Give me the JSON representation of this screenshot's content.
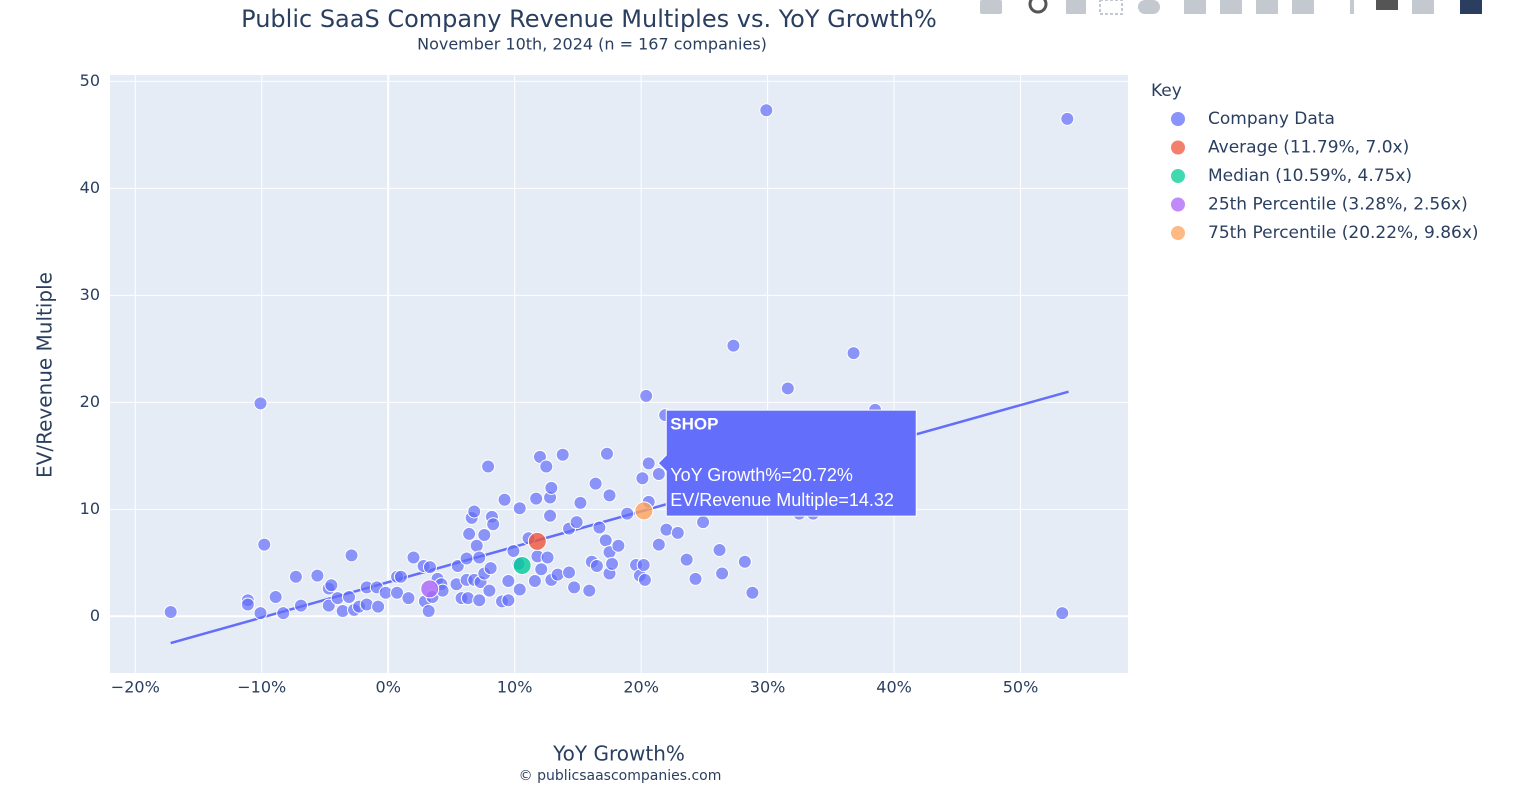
{
  "chart_data": {
    "type": "scatter",
    "title": "Public SaaS Company Revenue Multiples vs. YoY Growth%",
    "subtitle": "November 10th, 2024 (n = 167 companies)",
    "xlabel": "YoY Growth%",
    "ylabel": "EV/Revenue Multiple",
    "source": "© publicsaascompanies.com",
    "legend_title": "Key",
    "legend_position": "right",
    "grid": true,
    "xlim": [
      -22,
      58.5
    ],
    "ylim": [
      -5.3,
      50.6
    ],
    "xticks": [
      {
        "value": -20,
        "label": "−20%"
      },
      {
        "value": -10,
        "label": "−10%"
      },
      {
        "value": 0,
        "label": "0%"
      },
      {
        "value": 10,
        "label": "10%"
      },
      {
        "value": 20,
        "label": "20%"
      },
      {
        "value": 30,
        "label": "30%"
      },
      {
        "value": 40,
        "label": "40%"
      },
      {
        "value": 50,
        "label": "50%"
      }
    ],
    "yticks": [
      0,
      10,
      20,
      30,
      40,
      50
    ],
    "trendline": {
      "color": "#636efa",
      "x": [
        -17.2,
        53.8
      ],
      "values": [
        -2.5,
        21.0
      ]
    },
    "series": [
      {
        "name": "Company Data",
        "color": "#636efa",
        "x": [
          -17.2,
          -11.1,
          -11.1,
          -10.1,
          -10.1,
          -9.8,
          -8.9,
          -8.3,
          -7.3,
          -6.9,
          -5.6,
          -4.7,
          -4.5,
          -4.7,
          -4.0,
          -3.6,
          -3.1,
          -2.9,
          -2.7,
          -2.3,
          -1.7,
          -1.7,
          -0.9,
          -0.8,
          -0.2,
          0.7,
          0.7,
          1.0,
          1.6,
          2.0,
          2.8,
          2.9,
          3.2,
          3.3,
          3.5,
          3.9,
          4.2,
          4.3,
          5.4,
          5.5,
          5.8,
          6.2,
          6.2,
          6.3,
          6.4,
          6.6,
          6.8,
          6.8,
          7.0,
          7.2,
          7.2,
          7.3,
          7.6,
          7.6,
          7.9,
          8.0,
          8.1,
          8.2,
          8.3,
          9.0,
          9.2,
          9.5,
          9.5,
          9.9,
          10.3,
          10.4,
          10.4,
          11.1,
          11.6,
          11.7,
          11.8,
          12.0,
          12.1,
          12.5,
          12.6,
          12.8,
          12.8,
          12.9,
          12.9,
          13.4,
          13.8,
          14.3,
          14.3,
          14.7,
          14.9,
          15.2,
          15.9,
          16.1,
          16.4,
          16.5,
          16.7,
          17.2,
          17.3,
          17.5,
          17.5,
          17.5,
          17.7,
          18.2,
          18.9,
          19.6,
          19.9,
          20.1,
          20.2,
          20.3,
          20.4,
          20.6,
          20.6,
          21.4,
          21.4,
          21.9,
          22.0,
          22.9,
          23.6,
          24.3,
          24.9,
          26.2,
          26.4,
          27.3,
          28.2,
          28.8,
          29.9,
          31.6,
          32.5,
          33.6,
          36.8,
          38.5,
          53.3,
          53.7
        ],
        "values": [
          0.4,
          1.5,
          1.1,
          19.9,
          0.3,
          6.7,
          1.8,
          0.3,
          3.7,
          1.0,
          3.8,
          2.6,
          2.9,
          1.0,
          1.7,
          0.5,
          1.8,
          5.7,
          0.6,
          0.9,
          1.1,
          2.7,
          2.7,
          0.9,
          2.2,
          3.7,
          2.2,
          3.7,
          1.7,
          5.5,
          4.7,
          1.4,
          0.5,
          4.6,
          1.8,
          3.5,
          3.0,
          2.4,
          3.0,
          4.7,
          1.7,
          5.4,
          3.4,
          1.7,
          7.7,
          9.2,
          9.8,
          3.4,
          6.6,
          5.5,
          1.5,
          3.2,
          7.6,
          4.0,
          14.0,
          2.4,
          4.5,
          9.3,
          8.6,
          1.4,
          10.9,
          1.5,
          3.3,
          6.1,
          4.9,
          10.1,
          2.5,
          7.3,
          3.3,
          11.0,
          5.6,
          14.9,
          4.4,
          14.0,
          5.5,
          11.1,
          9.4,
          12.0,
          3.4,
          3.9,
          15.1,
          8.2,
          4.1,
          2.7,
          8.8,
          10.6,
          2.4,
          5.1,
          12.4,
          4.7,
          8.3,
          7.1,
          15.2,
          11.3,
          6.0,
          4.0,
          4.9,
          6.6,
          9.6,
          4.8,
          3.8,
          12.9,
          4.8,
          3.4,
          20.6,
          14.3,
          10.7,
          13.3,
          6.7,
          18.8,
          8.1,
          7.8,
          5.3,
          3.5,
          8.8,
          6.2,
          4.0,
          25.3,
          5.1,
          2.2,
          47.3,
          21.3,
          9.6,
          9.6,
          24.6,
          19.3,
          0.3,
          46.5
        ]
      },
      {
        "name": "Average (11.79%, 7.0x)",
        "color": "#ef553b",
        "x": [
          11.79
        ],
        "values": [
          7.0
        ]
      },
      {
        "name": "Median (10.59%, 4.75x)",
        "color": "#00cc96",
        "x": [
          10.59
        ],
        "values": [
          4.75
        ]
      },
      {
        "name": "25th Percentile (3.28%, 2.56x)",
        "color": "#ab63fa",
        "x": [
          3.28
        ],
        "values": [
          2.56
        ]
      },
      {
        "name": "75th Percentile (20.22%, 9.86x)",
        "color": "#ffa15a",
        "x": [
          20.22
        ],
        "values": [
          9.86
        ]
      }
    ],
    "hover": {
      "label": "SHOP",
      "x": 20.72,
      "y": 14.32,
      "lines": [
        "YoY Growth%=20.72%",
        "EV/Revenue Multiple=14.32"
      ]
    }
  }
}
